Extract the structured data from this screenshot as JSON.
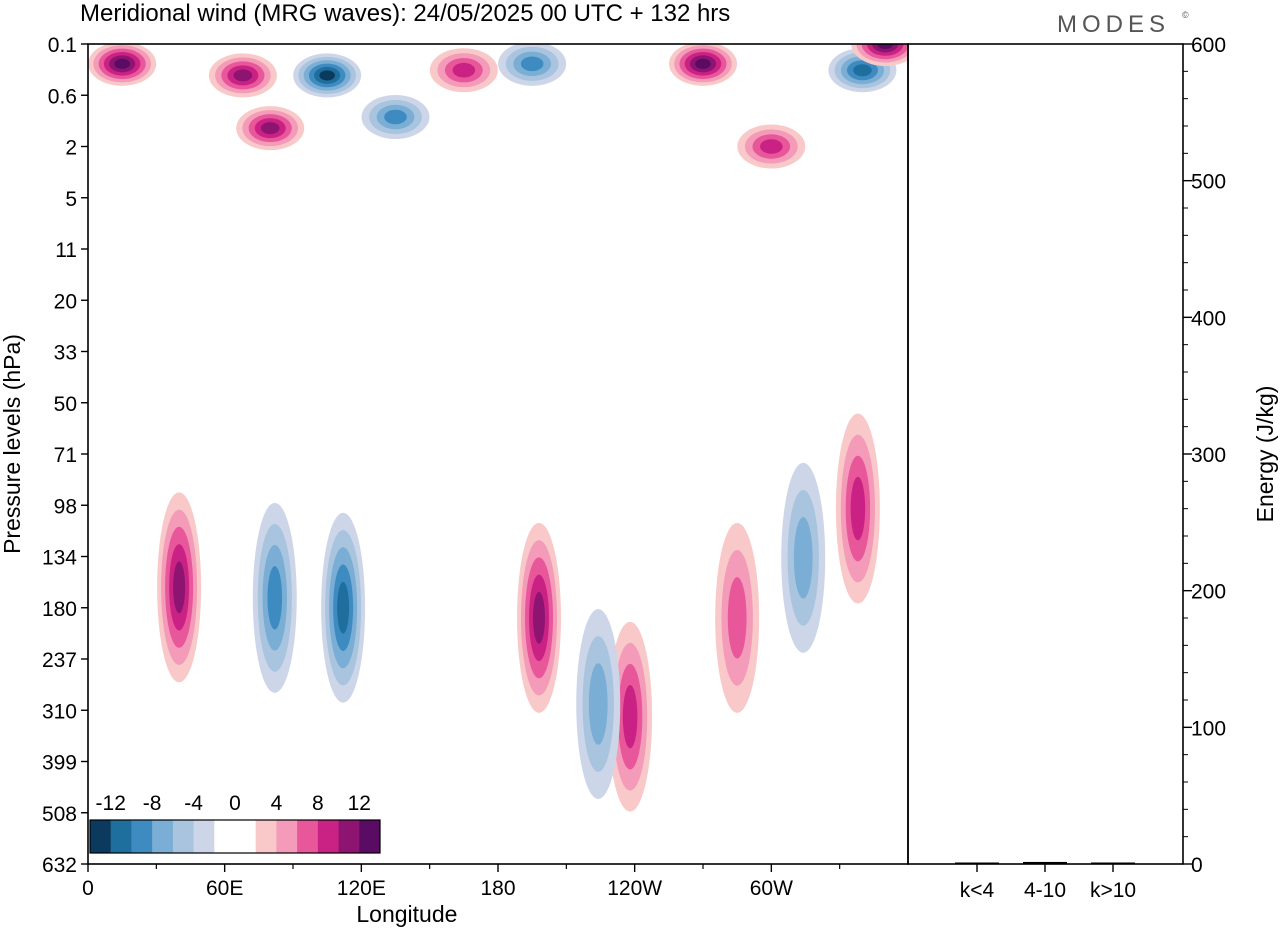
{
  "title": "Meridional wind (MRG waves):  24/05/2025  00 UTC  + 132 hrs",
  "logo_text": "MODES",
  "logo_mark": "©",
  "chart_data": [
    {
      "type": "heatmap",
      "title": "Meridional wind (MRG waves):  24/05/2025  00 UTC  + 132 hrs",
      "xlabel": "Longitude",
      "ylabel": "Pressure levels (hPa)",
      "x_ticks": [
        "0",
        "60E",
        "120E",
        "180",
        "120W",
        "60W"
      ],
      "y_ticks": [
        "0.1",
        "0.6",
        "2",
        "5",
        "11",
        "20",
        "33",
        "50",
        "71",
        "98",
        "134",
        "180",
        "237",
        "310",
        "399",
        "508",
        "632"
      ],
      "y_scale": "log-pressure",
      "x_range": [
        0,
        360
      ],
      "colorbar": {
        "levels": [
          -12,
          -8,
          -4,
          0,
          4,
          8,
          12
        ],
        "labels": [
          "-12",
          "-8",
          "-4",
          "0",
          "4",
          "8",
          "12"
        ],
        "colors": [
          "#0b3a5e",
          "#1e6f9e",
          "#3d8bc0",
          "#7aaed4",
          "#a9c4df",
          "#cdd6e9",
          "#ffffff",
          "#ffffff",
          "#f9c9c9",
          "#f39bb8",
          "#e8579a",
          "#c92284",
          "#8e1472",
          "#5a0b63"
        ]
      },
      "features": [
        {
          "lon": 40,
          "level": 160,
          "value": 10
        },
        {
          "lon": 82,
          "level": 170,
          "value": -8
        },
        {
          "lon": 112,
          "level": 180,
          "value": -9
        },
        {
          "lon": 198,
          "level": 190,
          "value": 10
        },
        {
          "lon": 238,
          "level": 320,
          "value": 7
        },
        {
          "lon": 224,
          "level": 300,
          "value": -5
        },
        {
          "lon": 285,
          "level": 190,
          "value": 6
        },
        {
          "lon": 314,
          "level": 135,
          "value": -6
        },
        {
          "lon": 338,
          "level": 100,
          "value": 7
        },
        {
          "lon": 15,
          "level": 0.2,
          "value": 12
        },
        {
          "lon": 80,
          "level": 1.3,
          "value": 9
        },
        {
          "lon": 68,
          "level": 0.3,
          "value": 10
        },
        {
          "lon": 105,
          "level": 0.3,
          "value": -12
        },
        {
          "lon": 135,
          "level": 1.0,
          "value": -8
        },
        {
          "lon": 165,
          "level": 0.25,
          "value": 8
        },
        {
          "lon": 195,
          "level": 0.2,
          "value": -8
        },
        {
          "lon": 270,
          "level": 0.2,
          "value": 11
        },
        {
          "lon": 300,
          "level": 2.0,
          "value": 8
        },
        {
          "lon": 340,
          "level": 0.25,
          "value": -9
        },
        {
          "lon": 350,
          "level": 0.1,
          "value": 12
        }
      ]
    },
    {
      "type": "bar",
      "ylabel": "Energy (J/kg)",
      "categories": [
        "k<4",
        "4-10",
        "k>10"
      ],
      "values": [
        0.5,
        1.5,
        0.3
      ],
      "ylim": [
        0,
        600
      ],
      "y_ticks": [
        "0",
        "100",
        "200",
        "300",
        "400",
        "500",
        "600"
      ]
    }
  ]
}
